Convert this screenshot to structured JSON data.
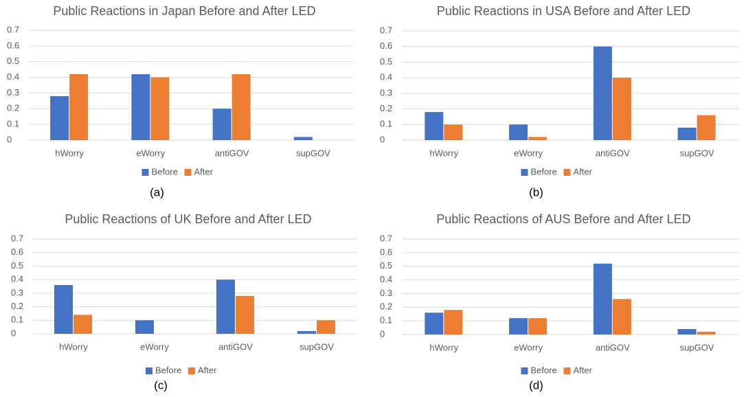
{
  "chart_data": [
    {
      "type": "bar",
      "title": "Public Reactions in Japan Before and After LED",
      "caption": "(a)",
      "categories": [
        "hWorry",
        "eWorry",
        "antiGOV",
        "supGOV"
      ],
      "series": [
        {
          "name": "Before",
          "color": "#4472c4",
          "values": [
            0.28,
            0.42,
            0.2,
            0.02
          ]
        },
        {
          "name": "After",
          "color": "#ed7d31",
          "values": [
            0.42,
            0.4,
            0.42,
            0
          ]
        }
      ],
      "ylim": [
        0,
        0.7
      ],
      "yticks": [
        0,
        0.1,
        0.2,
        0.3,
        0.4,
        0.5,
        0.6,
        0.7
      ],
      "grid": true,
      "legend": "bottom"
    },
    {
      "type": "bar",
      "title": "Public Reactions in USA Before and After LED",
      "caption": "(b)",
      "categories": [
        "hWorry",
        "eWorry",
        "antiGOV",
        "supGOV"
      ],
      "series": [
        {
          "name": "Before",
          "color": "#4472c4",
          "values": [
            0.18,
            0.1,
            0.6,
            0.08
          ]
        },
        {
          "name": "After",
          "color": "#ed7d31",
          "values": [
            0.1,
            0.02,
            0.4,
            0.16
          ]
        }
      ],
      "ylim": [
        0,
        0.7
      ],
      "yticks": [
        0,
        0.1,
        0.2,
        0.3,
        0.4,
        0.5,
        0.6,
        0.7
      ],
      "grid": true,
      "legend": "bottom"
    },
    {
      "type": "bar",
      "title": "Public Reactions of UK Before and After LED",
      "caption": "(c)",
      "categories": [
        "hWorry",
        "eWorry",
        "antiGOV",
        "supGOV"
      ],
      "series": [
        {
          "name": "Before",
          "color": "#4472c4",
          "values": [
            0.36,
            0.1,
            0.4,
            0.02
          ]
        },
        {
          "name": "After",
          "color": "#ed7d31",
          "values": [
            0.14,
            0,
            0.28,
            0.1
          ]
        }
      ],
      "ylim": [
        0,
        0.7
      ],
      "yticks": [
        0,
        0.1,
        0.2,
        0.3,
        0.4,
        0.5,
        0.6,
        0.7
      ],
      "grid": true,
      "legend": "bottom"
    },
    {
      "type": "bar",
      "title": "Public Reactions of AUS Before and After LED",
      "caption": "(d)",
      "categories": [
        "hWorry",
        "eWorry",
        "antiGOV",
        "supGOV"
      ],
      "series": [
        {
          "name": "Before",
          "color": "#4472c4",
          "values": [
            0.16,
            0.12,
            0.52,
            0.04
          ]
        },
        {
          "name": "After",
          "color": "#ed7d31",
          "values": [
            0.18,
            0.12,
            0.26,
            0.02
          ]
        }
      ],
      "ylim": [
        0,
        0.7
      ],
      "yticks": [
        0,
        0.1,
        0.2,
        0.3,
        0.4,
        0.5,
        0.6,
        0.7
      ],
      "grid": true,
      "legend": "bottom"
    }
  ]
}
